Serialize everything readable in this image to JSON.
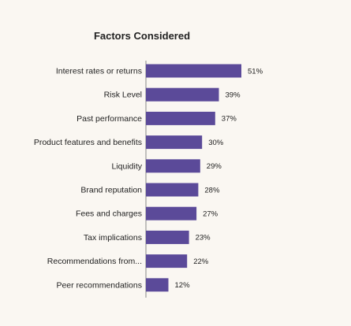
{
  "chart_data": {
    "type": "bar",
    "orientation": "horizontal",
    "title": "Factors Considered",
    "categories": [
      "Interest rates or returns",
      "Risk Level",
      "Past performance",
      "Product features and benefits",
      "Liquidity",
      "Brand reputation",
      "Fees and charges",
      "Tax implications",
      "Recommendations from...",
      "Peer recommendations"
    ],
    "values": [
      51,
      39,
      37,
      30,
      29,
      28,
      27,
      23,
      22,
      12
    ],
    "value_labels": [
      "51%",
      "39%",
      "37%",
      "30%",
      "29%",
      "28%",
      "27%",
      "23%",
      "22%",
      "12%"
    ],
    "xlim": [
      0,
      51
    ],
    "xlabel": "",
    "ylabel": "",
    "grid": false,
    "legend": "none",
    "colors": {
      "bar": "#5b4a99",
      "axis": "#888888",
      "background": "#faf7f2",
      "text": "#222222"
    }
  }
}
